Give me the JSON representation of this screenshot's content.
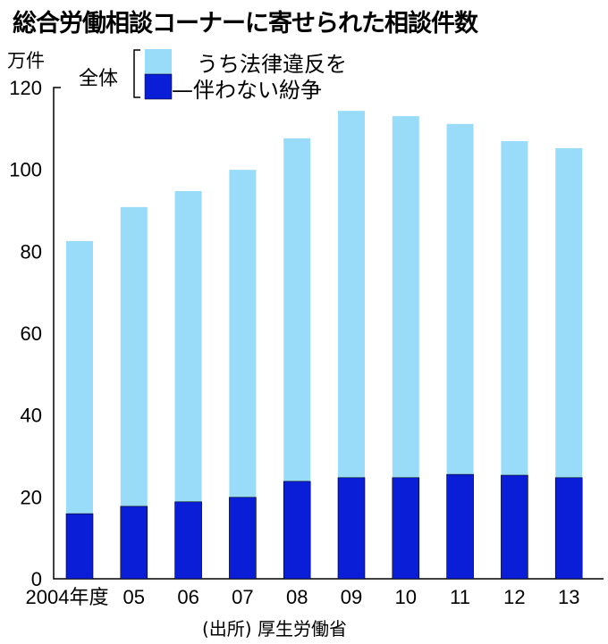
{
  "chart_data": {
    "type": "bar",
    "stacked": false,
    "title": "総合労働相談コーナーに寄せられた相談件数",
    "ylabel": "万件",
    "ylim": [
      0,
      120
    ],
    "yticks": [
      "0",
      "20",
      "40",
      "60",
      "80",
      "100",
      "120"
    ],
    "categories": [
      "2004年度",
      "05",
      "06",
      "07",
      "08",
      "09",
      "10",
      "11",
      "12",
      "13"
    ],
    "series": [
      {
        "name": "全体",
        "color": "#99dcfa",
        "values": [
          82.5,
          90.8,
          94.7,
          99.9,
          107.6,
          114.3,
          113.0,
          111.1,
          106.9,
          105.2
        ]
      },
      {
        "name": "うち法律違反を伴わない紛争",
        "color": "#0a1ed8",
        "values": [
          15.9,
          17.7,
          18.8,
          19.9,
          23.8,
          24.7,
          24.7,
          25.5,
          25.3,
          24.7
        ]
      }
    ],
    "legend": {
      "total_label": "全体",
      "line1": "うち法律違反を",
      "line2": "伴わない紛争",
      "placement": "top"
    },
    "source": "(出所) 厚生労働省"
  }
}
